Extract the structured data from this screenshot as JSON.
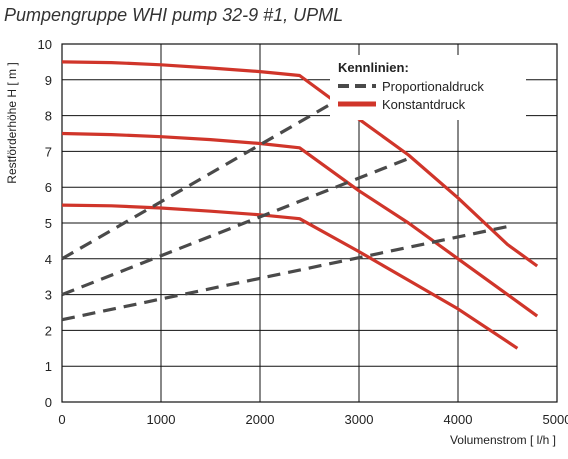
{
  "chart_data": {
    "type": "line",
    "title": "Pumpengruppe WHI pump 32-9 #1, UPML",
    "xlabel": "Volumenstrom [ l/h ]",
    "ylabel": "Restförderhöhe H [ m ]",
    "xlim": [
      0,
      5000
    ],
    "ylim": [
      0,
      10
    ],
    "x_ticks": [
      "0",
      "1000",
      "2000",
      "3000",
      "4000",
      "5000"
    ],
    "y_ticks": [
      "0",
      "1",
      "2",
      "3",
      "4",
      "5",
      "6",
      "7",
      "8",
      "9",
      "10"
    ],
    "grid": true,
    "legend": {
      "title": "Kennlinien:",
      "placement": "top-right",
      "entries": [
        {
          "label": "Proportionaldruck",
          "style": "dashed",
          "color": "#4a4a4a"
        },
        {
          "label": "Konstantdruck",
          "style": "solid",
          "color": "#d0352a"
        }
      ]
    },
    "series": [
      {
        "kind": "Konstantdruck",
        "color": "#d0352a",
        "style": "solid",
        "points": [
          [
            0,
            9.5
          ],
          [
            500,
            9.48
          ],
          [
            1000,
            9.42
          ],
          [
            1500,
            9.33
          ],
          [
            2000,
            9.23
          ],
          [
            2400,
            9.12
          ],
          [
            3000,
            7.9
          ],
          [
            3500,
            6.9
          ],
          [
            4000,
            5.7
          ],
          [
            4500,
            4.4
          ],
          [
            4800,
            3.8
          ]
        ]
      },
      {
        "kind": "Konstantdruck",
        "color": "#d0352a",
        "style": "solid",
        "points": [
          [
            0,
            7.5
          ],
          [
            500,
            7.47
          ],
          [
            1000,
            7.41
          ],
          [
            1500,
            7.33
          ],
          [
            2000,
            7.22
          ],
          [
            2400,
            7.1
          ],
          [
            3000,
            5.9
          ],
          [
            3500,
            5.0
          ],
          [
            4000,
            4.0
          ],
          [
            4500,
            3.0
          ],
          [
            4800,
            2.4
          ]
        ]
      },
      {
        "kind": "Konstantdruck",
        "color": "#d0352a",
        "style": "solid",
        "points": [
          [
            0,
            5.5
          ],
          [
            500,
            5.48
          ],
          [
            1000,
            5.42
          ],
          [
            1500,
            5.33
          ],
          [
            2000,
            5.23
          ],
          [
            2400,
            5.12
          ],
          [
            3000,
            4.2
          ],
          [
            3500,
            3.4
          ],
          [
            4000,
            2.6
          ],
          [
            4600,
            1.5
          ]
        ]
      },
      {
        "kind": "Proportionaldruck",
        "color": "#4a4a4a",
        "style": "dashed",
        "points": [
          [
            0,
            4.0
          ],
          [
            2700,
            8.3
          ]
        ]
      },
      {
        "kind": "Proportionaldruck",
        "color": "#4a4a4a",
        "style": "dashed",
        "points": [
          [
            0,
            3.0
          ],
          [
            3500,
            6.8
          ]
        ]
      },
      {
        "kind": "Proportionaldruck",
        "color": "#4a4a4a",
        "style": "dashed",
        "points": [
          [
            0,
            2.3
          ],
          [
            4500,
            4.9
          ]
        ]
      }
    ]
  }
}
